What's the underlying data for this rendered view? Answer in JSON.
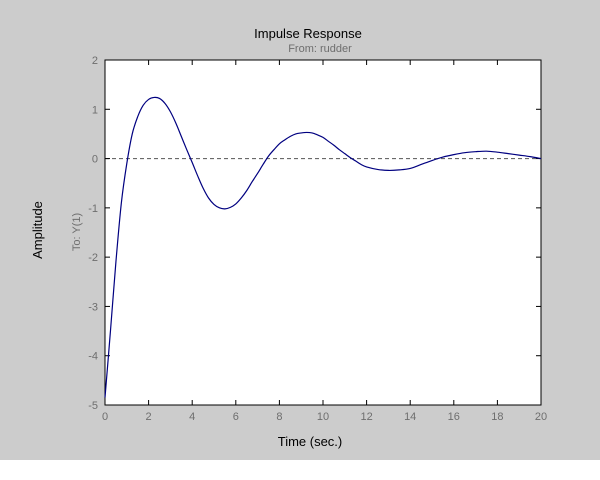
{
  "chart_data": {
    "type": "line",
    "title": "Impulse Response",
    "subtitle": "From: rudder",
    "xlabel": "Time (sec.)",
    "ylabel": "Amplitude",
    "output_label": "To: Y(1)",
    "xlim": [
      0,
      20
    ],
    "ylim": [
      -5,
      2
    ],
    "xticks": [
      0,
      2,
      4,
      6,
      8,
      10,
      12,
      14,
      16,
      18,
      20
    ],
    "yticks": [
      -5,
      -4,
      -3,
      -2,
      -1,
      0,
      1,
      2
    ],
    "grid": false,
    "reference_line": {
      "y": 0,
      "style": "dashed"
    },
    "series": [
      {
        "x": [
          0,
          0.25,
          0.5,
          0.75,
          1.0,
          1.25,
          1.5,
          1.75,
          2.0,
          2.25,
          2.5,
          2.75,
          3.0,
          3.25,
          3.5,
          3.75,
          4.0,
          4.25,
          4.5,
          4.75,
          5.0,
          5.25,
          5.5,
          5.75,
          6.0,
          6.25,
          6.5,
          6.75,
          7.0,
          7.25,
          7.5,
          7.75,
          8.0,
          8.25,
          8.5,
          8.75,
          9.0,
          9.25,
          9.5,
          9.75,
          10.0,
          10.25,
          10.5,
          10.75,
          11.0,
          11.25,
          11.5,
          11.75,
          12.0,
          12.5,
          13.0,
          13.5,
          14.0,
          14.5,
          15.0,
          15.5,
          16.0,
          16.5,
          17.0,
          17.5,
          18.0,
          18.5,
          19.0,
          19.5,
          20.0
        ],
        "y": [
          -4.85,
          -3.5,
          -2.1,
          -0.9,
          -0.1,
          0.5,
          0.85,
          1.08,
          1.2,
          1.24,
          1.22,
          1.12,
          0.95,
          0.72,
          0.45,
          0.18,
          -0.08,
          -0.35,
          -0.6,
          -0.8,
          -0.93,
          -1.0,
          -1.02,
          -0.99,
          -0.92,
          -0.8,
          -0.65,
          -0.47,
          -0.3,
          -0.12,
          0.05,
          0.18,
          0.3,
          0.38,
          0.45,
          0.5,
          0.52,
          0.53,
          0.52,
          0.48,
          0.43,
          0.35,
          0.27,
          0.18,
          0.1,
          0.02,
          -0.05,
          -0.12,
          -0.17,
          -0.22,
          -0.24,
          -0.23,
          -0.2,
          -0.12,
          -0.04,
          0.03,
          0.08,
          0.12,
          0.14,
          0.15,
          0.13,
          0.1,
          0.07,
          0.04,
          0.0
        ],
        "color": "#000080"
      }
    ]
  }
}
